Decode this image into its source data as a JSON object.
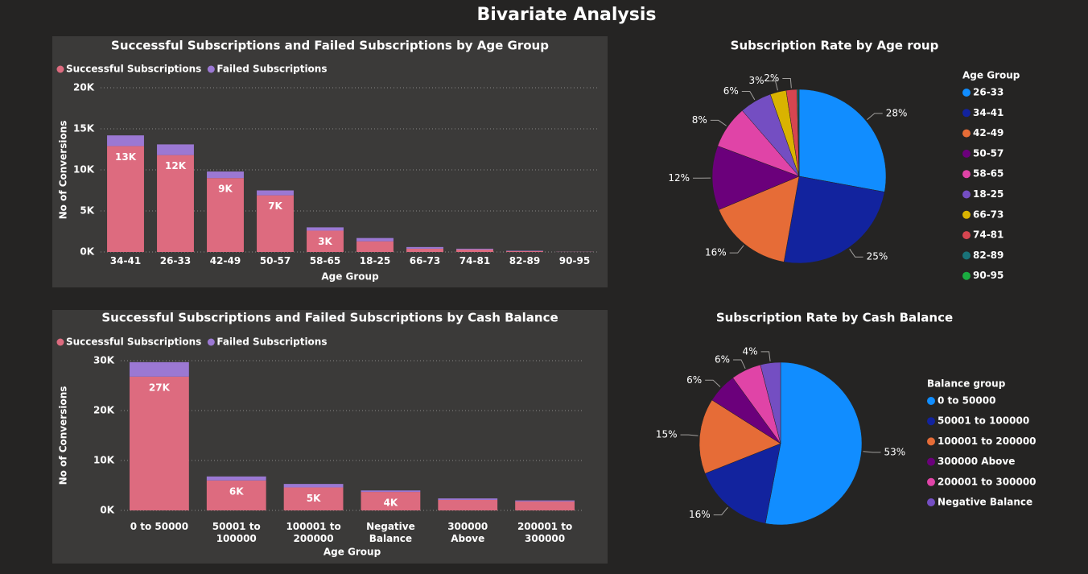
{
  "title": "Bivariate Analysis",
  "chart_data": [
    {
      "type": "bar",
      "title": "Successful Subscriptions and Failed Subscriptions by Age Group",
      "x_label": "Age Group",
      "y_label": "No of Conversions",
      "categories": [
        "34-41",
        "26-33",
        "42-49",
        "50-57",
        "58-65",
        "18-25",
        "66-73",
        "74-81",
        "82-89",
        "90-95"
      ],
      "series": [
        {
          "name": "Successful Subscriptions",
          "color": "#dd6b7f",
          "values": [
            12900,
            11800,
            9000,
            6900,
            2600,
            1300,
            400,
            300,
            100,
            20
          ],
          "value_labels": [
            "13K",
            "12K",
            "9K",
            "7K",
            "3K",
            null,
            null,
            null,
            null,
            null
          ]
        },
        {
          "name": "Failed Subscriptions",
          "color": "#9b78d3",
          "values": [
            1300,
            1300,
            800,
            600,
            400,
            400,
            200,
            100,
            50,
            10
          ]
        }
      ],
      "ylim": [
        0,
        20000
      ],
      "yticks": [
        {
          "value": 0,
          "label": "0K"
        },
        {
          "value": 5000,
          "label": "5K"
        },
        {
          "value": 10000,
          "label": "10K"
        },
        {
          "value": 15000,
          "label": "15K"
        },
        {
          "value": 20000,
          "label": "20K"
        }
      ],
      "grid": true
    },
    {
      "type": "pie",
      "title": "Subscription Rate by Age roup",
      "legend_title": "Age Group",
      "categories": [
        "26-33",
        "34-41",
        "42-49",
        "50-57",
        "58-65",
        "18-25",
        "66-73",
        "74-81",
        "82-89",
        "90-95"
      ],
      "values": [
        28,
        25,
        16,
        12,
        8,
        6,
        3,
        2,
        0.3,
        0.1
      ],
      "value_labels": [
        "28%",
        "25%",
        "16%",
        "12%",
        "8%",
        "6%",
        "3%",
        "2%",
        null,
        null
      ],
      "colors": [
        "#118dff",
        "#12239e",
        "#e66c37",
        "#6b007b",
        "#e044a7",
        "#744ec2",
        "#d9b300",
        "#d64550",
        "#197278",
        "#1aab40"
      ]
    },
    {
      "type": "bar",
      "title": "Successful Subscriptions and Failed Subscriptions by Cash Balance",
      "x_label": "Age Group",
      "y_label": "No of Conversions",
      "categories": [
        "0 to 50000",
        "50001 to 100000",
        "100001 to 200000",
        "Negative Balance",
        "300000 Above",
        "200001 to 300000"
      ],
      "series": [
        {
          "name": "Successful Subscriptions",
          "color": "#dd6b7f",
          "values": [
            26800,
            6000,
            4600,
            3700,
            2100,
            1800
          ],
          "value_labels": [
            "27K",
            "6K",
            "5K",
            "4K",
            null,
            null
          ]
        },
        {
          "name": "Failed Subscriptions",
          "color": "#9b78d3",
          "values": [
            2900,
            800,
            700,
            300,
            300,
            200
          ]
        }
      ],
      "ylim": [
        0,
        30000
      ],
      "yticks": [
        {
          "value": 0,
          "label": "0K"
        },
        {
          "value": 10000,
          "label": "10K"
        },
        {
          "value": 20000,
          "label": "20K"
        },
        {
          "value": 30000,
          "label": "30K"
        }
      ],
      "grid": true
    },
    {
      "type": "pie",
      "title": "Subscription Rate by Cash Balance",
      "legend_title": "Balance group",
      "categories": [
        "0 to 50000",
        "50001 to 100000",
        "100001 to 200000",
        "300000 Above",
        "200001 to 300000",
        "Negative Balance"
      ],
      "values": [
        53,
        16,
        15,
        6,
        6,
        4
      ],
      "value_labels": [
        "53%",
        "16%",
        "15%",
        "6%",
        "6%",
        "4%"
      ],
      "colors": [
        "#118dff",
        "#12239e",
        "#e66c37",
        "#6b007b",
        "#e044a7",
        "#744ec2"
      ]
    }
  ]
}
